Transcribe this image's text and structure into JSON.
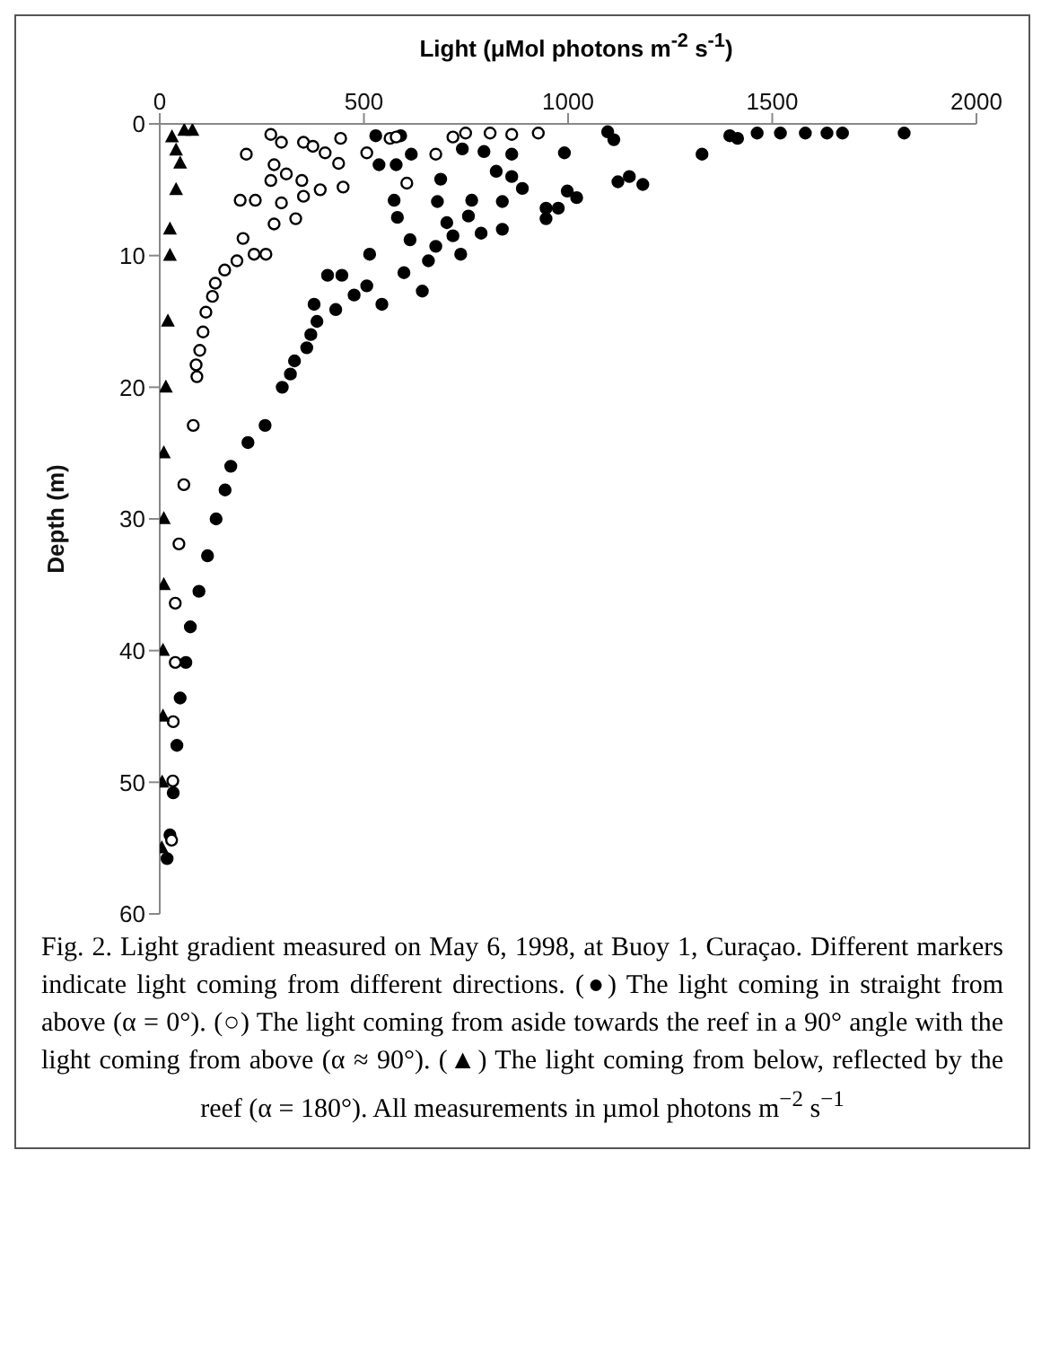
{
  "chart_data": {
    "type": "scatter",
    "xlabel": "Light (μMol photons m$^{-2}$ s$^{-1}$)",
    "ylabel": "Depth (m)",
    "xlim": [
      0,
      2000
    ],
    "xticks": [
      0,
      500,
      1000,
      1500,
      2000
    ],
    "ylim": [
      60,
      0
    ],
    "yticks": [
      0,
      10,
      20,
      30,
      40,
      50,
      60
    ],
    "annotations": [
      "Fig. 2. Light gradient measured on May 6, 1998, at Buoy 1, Curaçao. Different markers indicate light coming from different directions. (●) The light coming in straight from above (α = 0°). (○) The light coming from aside towards the reef in a 90° angle with the light coming from above (α ≈ 90°). (▲) The light coming from below, reflected by the reef (α = 180°). All measurements in µmol photons m$^{−2}$ s$^{−1}$"
    ],
    "series": [
      {
        "color": "#000000",
        "marker": "circle",
        "x": [
          1823,
          1672,
          1634,
          1581,
          1520,
          1463,
          1415,
          1396,
          1328,
          1183,
          1150,
          1122,
          1112,
          1097,
          1021,
          998,
          991,
          976,
          946,
          946,
          888,
          862,
          839,
          862,
          839,
          787,
          824,
          794,
          764,
          756,
          741,
          737,
          718,
          703,
          676,
          658,
          688,
          680,
          643,
          598,
          613,
          582,
          574,
          579,
          616,
          529,
          537,
          590,
          544,
          514,
          507,
          476,
          446,
          411,
          431,
          378,
          385,
          370,
          360,
          330,
          320,
          300,
          258,
          216,
          174,
          160,
          138,
          117,
          96,
          75,
          64,
          50,
          42,
          33,
          25,
          18
        ],
        "values": [
          0.7,
          0.7,
          0.7,
          0.7,
          0.7,
          0.7,
          1.1,
          0.9,
          2.3,
          4.6,
          4.0,
          4.4,
          1.2,
          0.6,
          5.6,
          5.1,
          2.2,
          6.4,
          7.2,
          6.4,
          4.9,
          4.0,
          5.9,
          2.3,
          8.0,
          8.3,
          3.6,
          2.1,
          5.8,
          7.0,
          1.9,
          9.9,
          8.5,
          7.5,
          9.3,
          10.4,
          4.2,
          5.9,
          12.7,
          11.3,
          8.8,
          7.1,
          5.8,
          3.1,
          2.3,
          0.9,
          3.1,
          0.9,
          13.7,
          9.9,
          12.3,
          13.0,
          11.5,
          11.5,
          14.1,
          13.7,
          15,
          16,
          17,
          18,
          19,
          20,
          22.9,
          24.2,
          26.0,
          27.8,
          30.0,
          32.8,
          35.5,
          38.2,
          40.9,
          43.6,
          47.2,
          50.8,
          54.0,
          55.8
        ]
      },
      {
        "color": "#ffffff",
        "marker": "circle",
        "x": [
          212,
          272,
          298,
          352,
          375,
          443,
          405,
          438,
          449,
          393,
          348,
          352,
          310,
          280,
          272,
          298,
          333,
          280,
          260,
          231,
          204,
          197,
          234,
          507,
          564,
          579,
          605,
          676,
          718,
          749,
          809,
          862,
          927,
          189,
          159,
          136,
          129,
          113,
          106,
          98,
          91,
          89,
          82,
          59,
          47,
          38,
          38,
          33,
          32,
          29
        ],
        "values": [
          2.3,
          0.8,
          1.4,
          1.4,
          1.7,
          1.1,
          2.2,
          3.0,
          4.8,
          5.0,
          4.3,
          5.5,
          3.8,
          3.1,
          4.3,
          6.0,
          7.2,
          7.6,
          9.9,
          9.9,
          8.7,
          5.8,
          5.8,
          2.2,
          1.1,
          1.0,
          4.5,
          2.3,
          1.0,
          0.7,
          0.7,
          0.8,
          0.7,
          10.4,
          11.1,
          12.1,
          13.1,
          14.3,
          15.8,
          17.2,
          19.2,
          18.3,
          22.9,
          27.4,
          31.9,
          36.4,
          40.9,
          45.4,
          49.9,
          54.4
        ]
      },
      {
        "color": "#000000",
        "marker": "triangle",
        "x": [
          60,
          80,
          30,
          40,
          50,
          40,
          25,
          25,
          20,
          15,
          10,
          10,
          10,
          8,
          8,
          6,
          5
        ],
        "values": [
          0.5,
          0.5,
          1,
          2,
          3,
          5,
          8,
          10,
          15,
          20,
          25,
          30,
          35,
          40,
          45,
          50,
          55
        ]
      }
    ]
  }
}
